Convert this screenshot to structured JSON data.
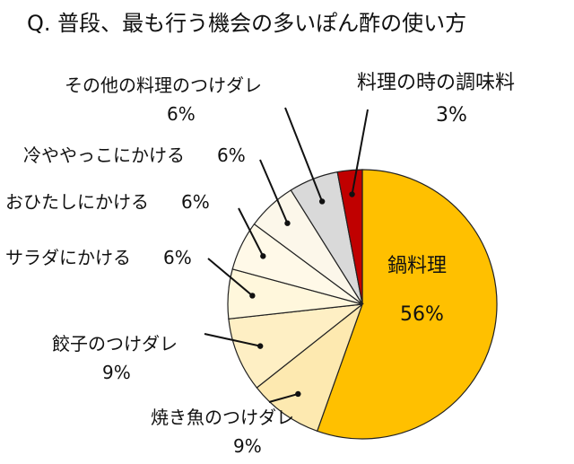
{
  "chart_data": {
    "type": "pie",
    "title": "Q. 普段、最も行う機会の多いぽん酢の使い方",
    "slices": [
      {
        "label": "鍋料理",
        "value": 56,
        "pct_text": "56%",
        "color": "#ffc000"
      },
      {
        "label": "焼き魚のつけダレ",
        "value": 9,
        "pct_text": "9%",
        "color": "#fde9b0"
      },
      {
        "label": "餃子のつけダレ",
        "value": 9,
        "pct_text": "9%",
        "color": "#feefc4"
      },
      {
        "label": "サラダにかける",
        "value": 6,
        "pct_text": "6%",
        "color": "#fff7dc"
      },
      {
        "label": "おひたしにかける",
        "value": 6,
        "pct_text": "6%",
        "color": "#fff9e8"
      },
      {
        "label": "冷ややっこにかける",
        "value": 6,
        "pct_text": "6%",
        "color": "#fcf7ea"
      },
      {
        "label": "その他の料理のつけダレ",
        "value": 6,
        "pct_text": "6%",
        "color": "#d9d9d9"
      },
      {
        "label": "料理の時の調味料",
        "value": 3,
        "pct_text": "3%",
        "color": "#c00000"
      }
    ]
  }
}
